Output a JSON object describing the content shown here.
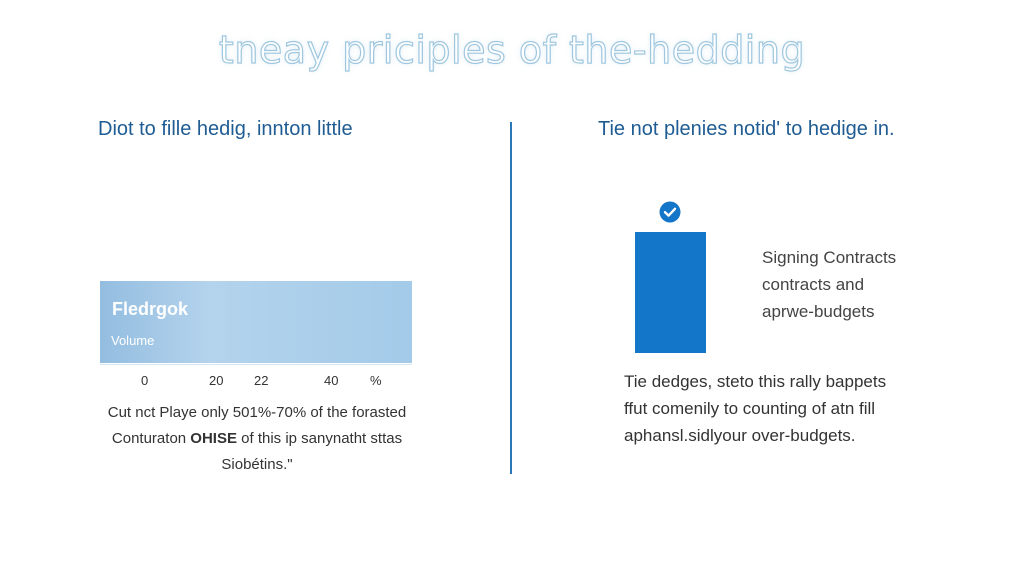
{
  "title": "tneay priciples of the-hedding",
  "left": {
    "heading": "Diot to fille hedig, innton little",
    "panel": {
      "title": "Fledrgok",
      "subtitle": "Volume"
    },
    "ticks": [
      "0",
      "20",
      "22",
      "40",
      "%"
    ],
    "paragraph": {
      "line1": "Cut nct Playe only 501%-70% of the forasted",
      "line2_pre": "Conturaton ",
      "line2_bold": "OHISE",
      "line2_post": " of this ip sanynatht sttas",
      "line3": "Siobétins.\""
    }
  },
  "right": {
    "heading": "Tie not plenies notid' to hedige in.",
    "bar_label": {
      "line1": "Signing Contracts",
      "line2": "contracts and",
      "line3": "aprwe-budgets"
    },
    "paragraph": {
      "line1": "Tie dedges, steto this rally bappets",
      "line2": "ffut comenily to counting of atn fill",
      "line3": "aphansl.sidlyour over-budgets."
    }
  },
  "icons": {
    "check": "check-circle-icon"
  },
  "colors": {
    "accent": "#1376c8",
    "heading": "#1f5c93",
    "divider": "#2c77b5"
  }
}
